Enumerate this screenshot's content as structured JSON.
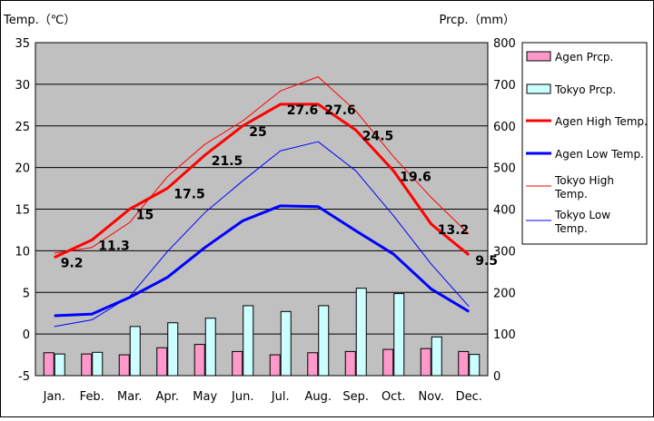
{
  "chart_data": {
    "type": "bar+line",
    "categories": [
      "Jan.",
      "Feb.",
      "Mar.",
      "Apr.",
      "May",
      "Jun.",
      "Jul.",
      "Aug.",
      "Sep.",
      "Oct.",
      "Nov.",
      "Dec."
    ],
    "y_left": {
      "label": "Temp.（℃）",
      "range": [
        -5,
        35
      ],
      "ticks": [
        -5,
        0,
        5,
        10,
        15,
        20,
        25,
        30,
        35
      ]
    },
    "y_right": {
      "label": "Prcp.（mm）",
      "range": [
        0,
        800
      ],
      "ticks": [
        0,
        100,
        200,
        300,
        400,
        500,
        600,
        700,
        800
      ]
    },
    "grid": true,
    "legend_position": "right",
    "bar_series": [
      {
        "name": "Agen Prcp.",
        "color": "#ff99cc",
        "values": [
          55,
          52,
          50,
          67,
          75,
          58,
          50,
          55,
          58,
          63,
          65,
          58
        ]
      },
      {
        "name": "Tokyo Prcp.",
        "color": "#ccffff",
        "values": [
          52,
          56,
          118,
          127,
          138,
          168,
          154,
          168,
          210,
          197,
          93,
          51
        ]
      }
    ],
    "line_series": [
      {
        "name": "Agen High Temp.",
        "color": "#ff0000",
        "width": 3,
        "values": [
          9.2,
          11.3,
          15,
          17.5,
          21.5,
          25,
          27.6,
          27.6,
          24.5,
          19.6,
          13.2,
          9.5
        ],
        "labels": [
          "9.2",
          "11.3",
          "15",
          "17.5",
          "21.5",
          "25",
          "27.6",
          "27.6",
          "24.5",
          "19.6",
          "13.2",
          "9.5"
        ]
      },
      {
        "name": "Agen Low Temp.",
        "color": "#0000ff",
        "width": 3,
        "values": [
          2.2,
          2.4,
          4.4,
          6.8,
          10.4,
          13.6,
          15.4,
          15.3,
          12.4,
          9.6,
          5.4,
          2.7
        ]
      },
      {
        "name": "Tokyo High Temp.",
        "color": "#ff0000",
        "width": 1,
        "values": [
          9.7,
          10.4,
          13.4,
          18.9,
          22.8,
          25.6,
          29.2,
          30.9,
          26.8,
          21.3,
          16.4,
          12.0
        ]
      },
      {
        "name": "Tokyo Low Temp.",
        "color": "#0000ff",
        "width": 1,
        "values": [
          0.9,
          1.7,
          4.5,
          9.9,
          14.6,
          18.4,
          22.0,
          23.1,
          19.6,
          14.2,
          8.4,
          3.3
        ]
      }
    ],
    "legend": [
      {
        "label": "Agen Prcp.",
        "kind": "box",
        "color": "#ff99cc"
      },
      {
        "label": "Tokyo Prcp.",
        "kind": "box",
        "color": "#ccffff"
      },
      {
        "label": "Agen High Temp.",
        "kind": "line",
        "color": "#ff0000",
        "width": 3
      },
      {
        "label": "Agen Low Temp.",
        "kind": "line",
        "color": "#0000ff",
        "width": 3
      },
      {
        "label": "Tokyo High Temp.",
        "kind": "line",
        "color": "#ff0000",
        "width": 1
      },
      {
        "label": "Tokyo Low Temp.",
        "kind": "line",
        "color": "#0000ff",
        "width": 1
      }
    ],
    "plot_background": "#c0c0c0"
  }
}
